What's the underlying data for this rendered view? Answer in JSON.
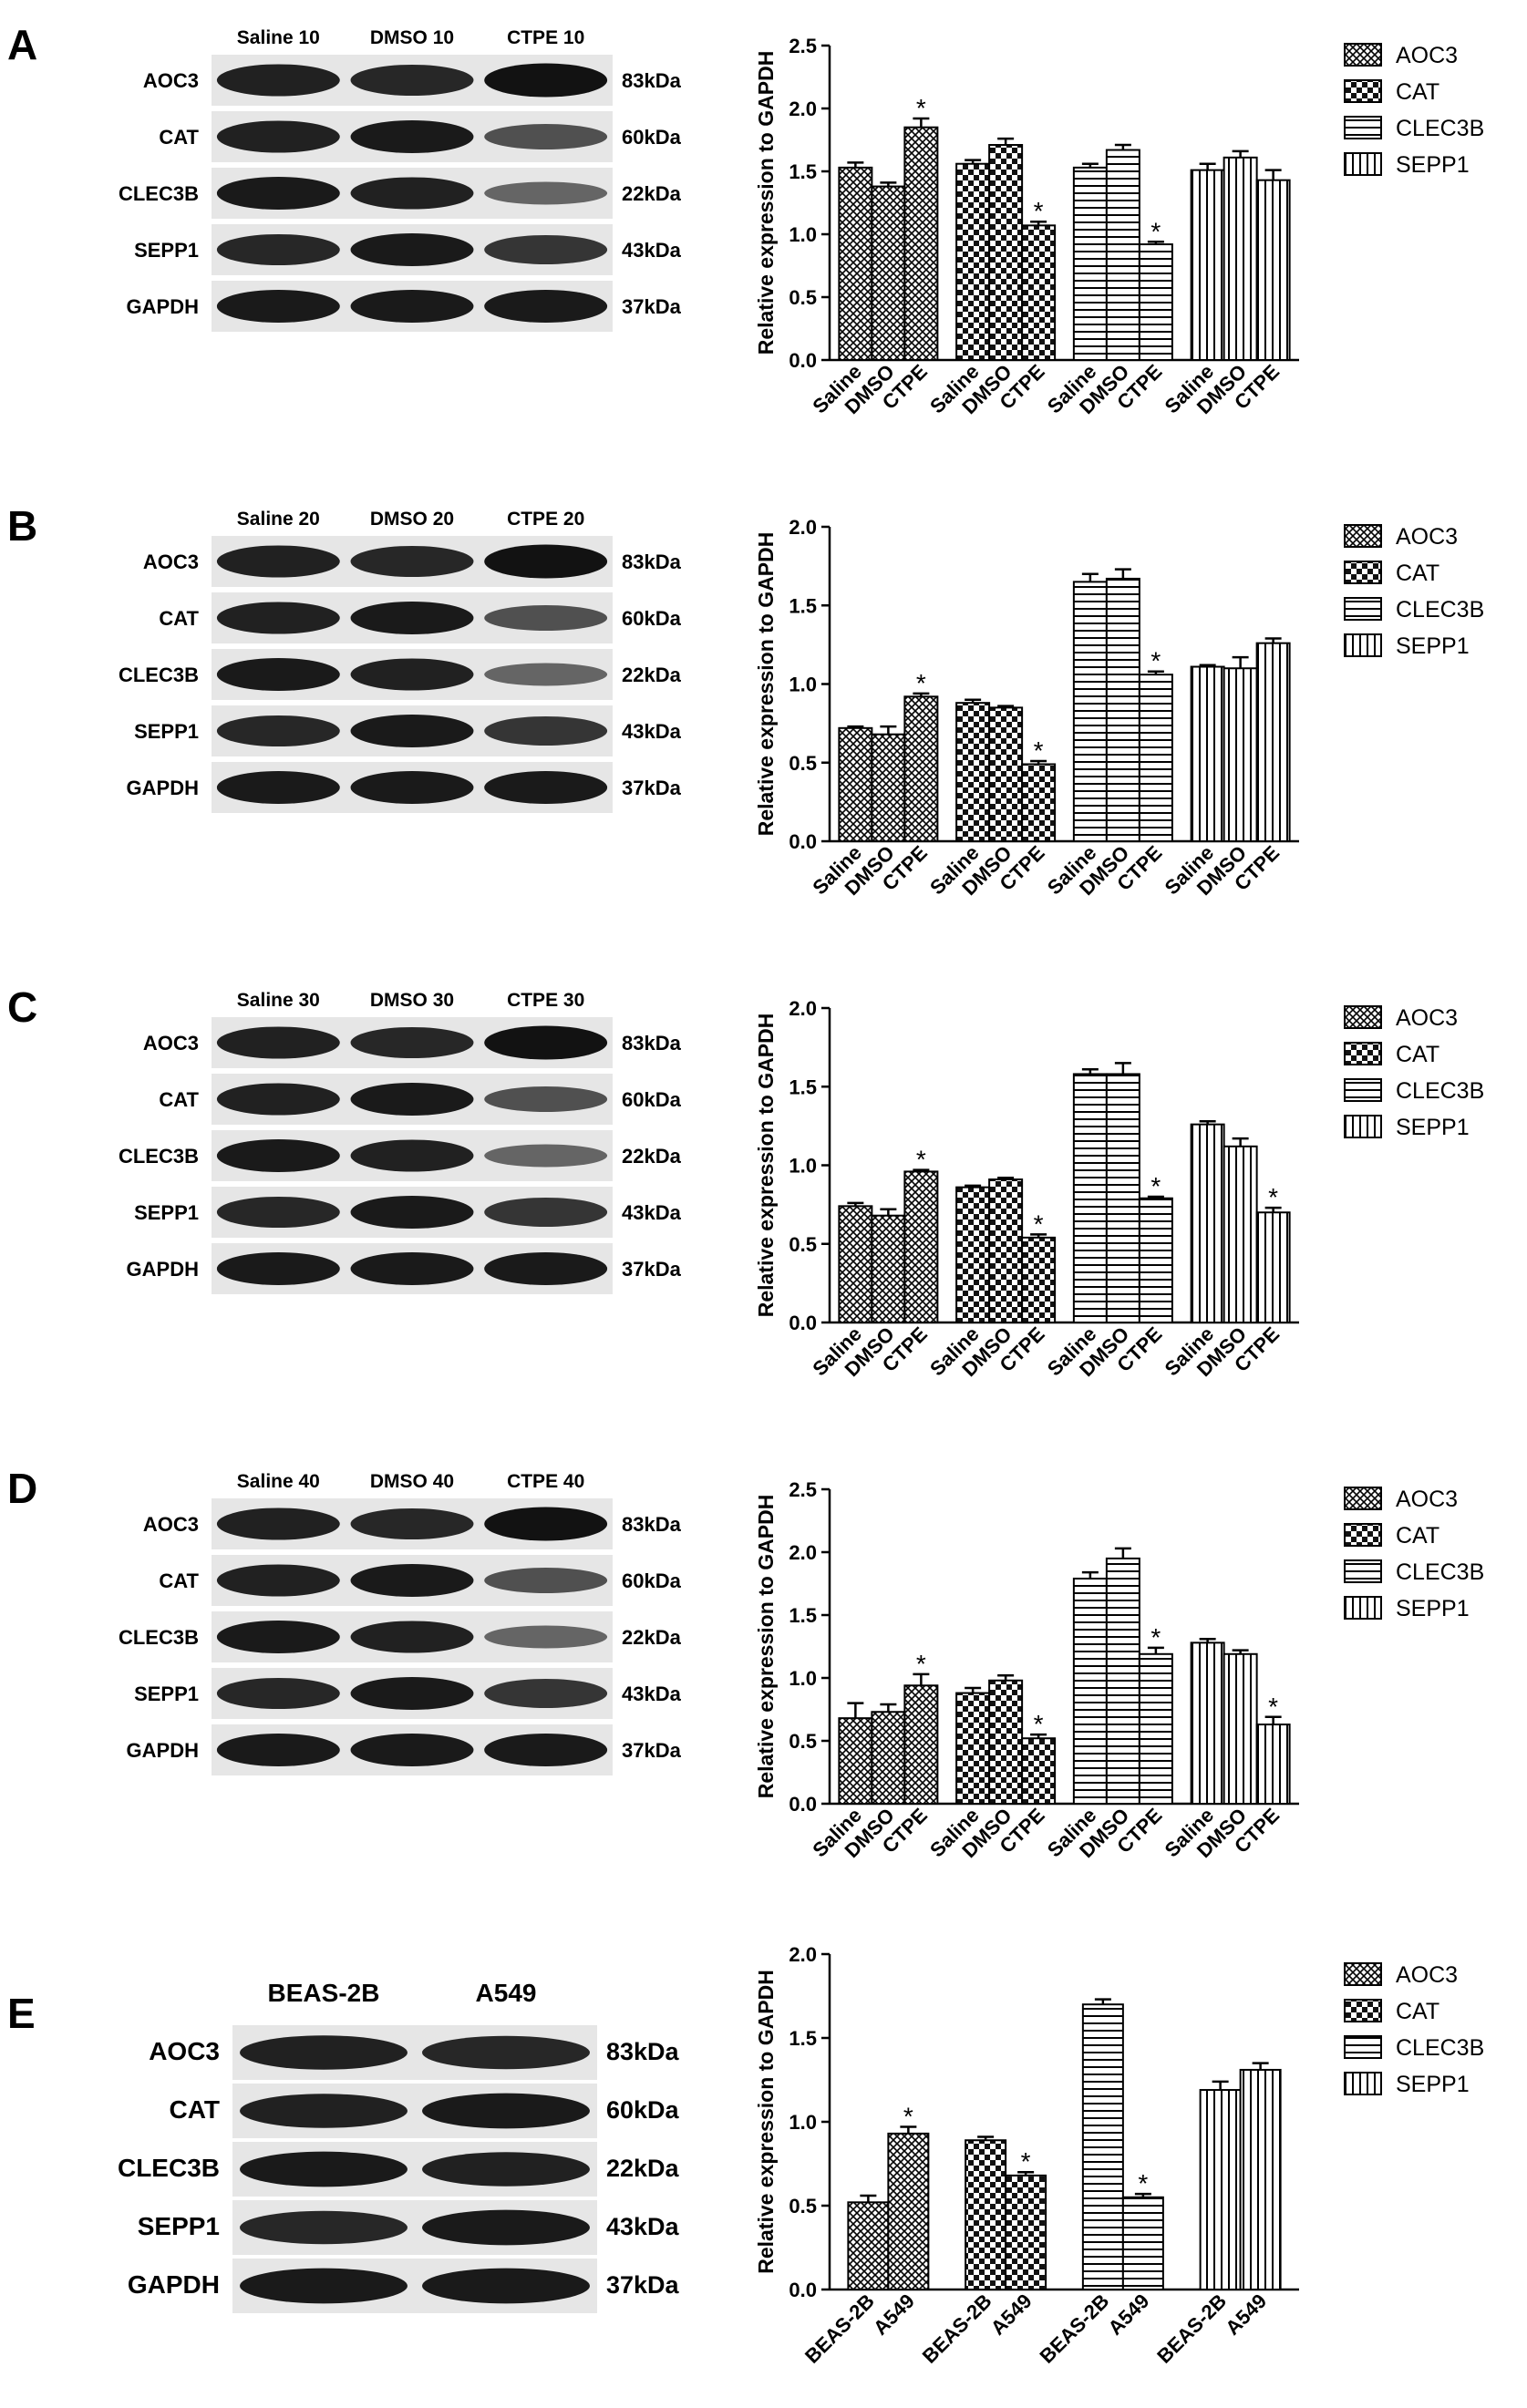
{
  "legend": [
    "AOC3",
    "CAT",
    "CLEC3B",
    "SEPP1"
  ],
  "band_labels": [
    "AOC3",
    "CAT",
    "CLEC3B",
    "SEPP1",
    "GAPDH"
  ],
  "band_kda": [
    "83kDa",
    "60kDa",
    "22kDa",
    "43kDa",
    "37kDa"
  ],
  "colors": {
    "bar_fill": "#ffffff",
    "ink": "#000000",
    "blot_bg": "#e6e6e6"
  },
  "panels": [
    {
      "label": "A",
      "lane_labels": [
        "Saline 10",
        "DMSO 10",
        "CTPE 10"
      ]
    },
    {
      "label": "B",
      "lane_labels": [
        "Saline 20",
        "DMSO 20",
        "CTPE 20"
      ]
    },
    {
      "label": "C",
      "lane_labels": [
        "Saline 30",
        "DMSO 30",
        "CTPE 30"
      ]
    },
    {
      "label": "D",
      "lane_labels": [
        "Saline 40",
        "DMSO 40",
        "CTPE 40"
      ]
    },
    {
      "label": "E",
      "lane_labels": [
        "BEAS-2B",
        "A549"
      ]
    }
  ],
  "chart_data": [
    {
      "type": "bar",
      "panel": "A",
      "ylabel": "Relative expression to GAPDH",
      "ylim": [
        0,
        2.5
      ],
      "yticks": [
        "0.0",
        "0.5",
        "1.0",
        "1.5",
        "2.0",
        "2.5"
      ],
      "groups": [
        "AOC3",
        "CAT",
        "CLEC3B",
        "SEPP1"
      ],
      "categories": [
        "Saline",
        "DMSO",
        "CTPE"
      ],
      "series": [
        {
          "name": "AOC3",
          "values": [
            1.53,
            1.38,
            1.85
          ],
          "errors": [
            0.04,
            0.03,
            0.07
          ],
          "sig": [
            "",
            "",
            "*"
          ]
        },
        {
          "name": "CAT",
          "values": [
            1.56,
            1.71,
            1.07
          ],
          "errors": [
            0.03,
            0.05,
            0.03
          ],
          "sig": [
            "",
            "",
            "*"
          ]
        },
        {
          "name": "CLEC3B",
          "values": [
            1.53,
            1.67,
            0.92
          ],
          "errors": [
            0.03,
            0.04,
            0.02
          ],
          "sig": [
            "",
            "",
            "*"
          ]
        },
        {
          "name": "SEPP1",
          "values": [
            1.51,
            1.61,
            1.43
          ],
          "errors": [
            0.05,
            0.05,
            0.08
          ],
          "sig": [
            "",
            "",
            ""
          ]
        }
      ],
      "legend_position": "right"
    },
    {
      "type": "bar",
      "panel": "B",
      "ylabel": "Relative expression to GAPDH",
      "ylim": [
        0,
        2.0
      ],
      "yticks": [
        "0.0",
        "0.5",
        "1.0",
        "1.5",
        "2.0"
      ],
      "groups": [
        "AOC3",
        "CAT",
        "CLEC3B",
        "SEPP1"
      ],
      "categories": [
        "Saline",
        "DMSO",
        "CTPE"
      ],
      "series": [
        {
          "name": "AOC3",
          "values": [
            0.72,
            0.68,
            0.92
          ],
          "errors": [
            0.01,
            0.05,
            0.02
          ],
          "sig": [
            "",
            "",
            "*"
          ]
        },
        {
          "name": "CAT",
          "values": [
            0.88,
            0.85,
            0.49
          ],
          "errors": [
            0.02,
            0.01,
            0.02
          ],
          "sig": [
            "",
            "",
            "*"
          ]
        },
        {
          "name": "CLEC3B",
          "values": [
            1.65,
            1.67,
            1.06
          ],
          "errors": [
            0.05,
            0.06,
            0.02
          ],
          "sig": [
            "",
            "",
            "*"
          ]
        },
        {
          "name": "SEPP1",
          "values": [
            1.11,
            1.1,
            1.26
          ],
          "errors": [
            0.01,
            0.07,
            0.03
          ],
          "sig": [
            "",
            "",
            ""
          ]
        }
      ],
      "legend_position": "right"
    },
    {
      "type": "bar",
      "panel": "C",
      "ylabel": "Relative expression to GAPDH",
      "ylim": [
        0,
        2.0
      ],
      "yticks": [
        "0.0",
        "0.5",
        "1.0",
        "1.5",
        "2.0"
      ],
      "groups": [
        "AOC3",
        "CAT",
        "CLEC3B",
        "SEPP1"
      ],
      "categories": [
        "Saline",
        "DMSO",
        "CTPE"
      ],
      "series": [
        {
          "name": "AOC3",
          "values": [
            0.74,
            0.68,
            0.96
          ],
          "errors": [
            0.02,
            0.04,
            0.01
          ],
          "sig": [
            "",
            "",
            "*"
          ]
        },
        {
          "name": "CAT",
          "values": [
            0.86,
            0.91,
            0.54
          ],
          "errors": [
            0.01,
            0.01,
            0.02
          ],
          "sig": [
            "",
            "",
            "*"
          ]
        },
        {
          "name": "CLEC3B",
          "values": [
            1.58,
            1.58,
            0.79
          ],
          "errors": [
            0.03,
            0.07,
            0.01
          ],
          "sig": [
            "",
            "",
            "*"
          ]
        },
        {
          "name": "SEPP1",
          "values": [
            1.26,
            1.12,
            0.7
          ],
          "errors": [
            0.02,
            0.05,
            0.03
          ],
          "sig": [
            "",
            "",
            "*"
          ]
        }
      ],
      "legend_position": "right"
    },
    {
      "type": "bar",
      "panel": "D",
      "ylabel": "Relative expression to GAPDH",
      "ylim": [
        0,
        2.5
      ],
      "yticks": [
        "0.0",
        "0.5",
        "1.0",
        "1.5",
        "2.0",
        "2.5"
      ],
      "groups": [
        "AOC3",
        "CAT",
        "CLEC3B",
        "SEPP1"
      ],
      "categories": [
        "Saline",
        "DMSO",
        "CTPE"
      ],
      "series": [
        {
          "name": "AOC3",
          "values": [
            0.68,
            0.73,
            0.94
          ],
          "errors": [
            0.12,
            0.06,
            0.09
          ],
          "sig": [
            "",
            "",
            "*"
          ]
        },
        {
          "name": "CAT",
          "values": [
            0.88,
            0.98,
            0.52
          ],
          "errors": [
            0.04,
            0.04,
            0.03
          ],
          "sig": [
            "",
            "",
            "*"
          ]
        },
        {
          "name": "CLEC3B",
          "values": [
            1.79,
            1.95,
            1.19
          ],
          "errors": [
            0.05,
            0.08,
            0.05
          ],
          "sig": [
            "",
            "",
            "*"
          ]
        },
        {
          "name": "SEPP1",
          "values": [
            1.28,
            1.19,
            0.63
          ],
          "errors": [
            0.03,
            0.03,
            0.06
          ],
          "sig": [
            "",
            "",
            "*"
          ]
        }
      ],
      "legend_position": "right"
    },
    {
      "type": "bar",
      "panel": "E",
      "ylabel": "Relative expression to GAPDH",
      "ylim": [
        0,
        2.0
      ],
      "yticks": [
        "0.0",
        "0.5",
        "1.0",
        "1.5",
        "2.0"
      ],
      "groups": [
        "AOC3",
        "CAT",
        "CLEC3B",
        "SEPP1"
      ],
      "categories": [
        "BEAS-2B",
        "A549"
      ],
      "series": [
        {
          "name": "AOC3",
          "values": [
            0.52,
            0.93
          ],
          "errors": [
            0.04,
            0.04
          ],
          "sig": [
            "",
            "*"
          ]
        },
        {
          "name": "CAT",
          "values": [
            0.89,
            0.68
          ],
          "errors": [
            0.02,
            0.02
          ],
          "sig": [
            "",
            "*"
          ]
        },
        {
          "name": "CLEC3B",
          "values": [
            1.7,
            0.55
          ],
          "errors": [
            0.03,
            0.02
          ],
          "sig": [
            "",
            "*"
          ]
        },
        {
          "name": "SEPP1",
          "values": [
            1.19,
            1.31
          ],
          "errors": [
            0.05,
            0.04
          ],
          "sig": [
            "",
            ""
          ]
        }
      ],
      "legend_position": "right"
    }
  ]
}
